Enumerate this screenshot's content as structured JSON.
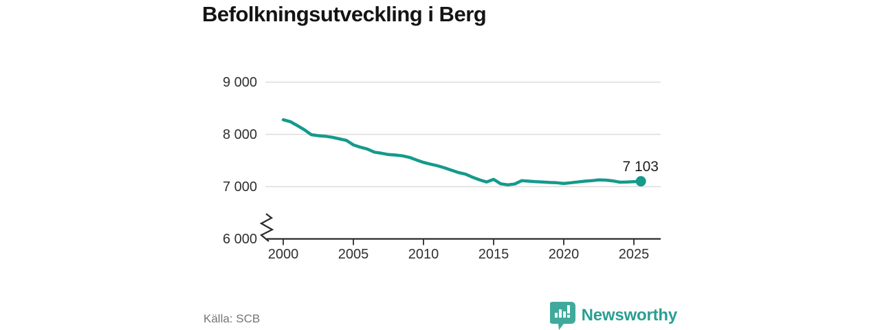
{
  "title": "Befolkningsutveckling i Berg",
  "source": "Källa: SCB",
  "brand": {
    "name": "Newsworthy",
    "color": "#2a9e93",
    "icon": "bar-chart-speech-bubble-icon"
  },
  "colors": {
    "line": "#159a8c",
    "dot": "#159a8c",
    "grid": "#dcdcdc",
    "axis": "#2a2a2a",
    "title_text": "#141414",
    "tick_text": "#2f2f2f",
    "muted_text": "#757575",
    "brand_teal": "#2a9e93"
  },
  "chart_data": {
    "type": "line",
    "title": "Befolkningsutveckling i Berg",
    "xlabel": "",
    "ylabel": "",
    "xlim": [
      2000,
      2026.5
    ],
    "ylim": [
      6000,
      9000
    ],
    "grid": "horizontal",
    "legend": "none",
    "axis_break": true,
    "x": [
      2000,
      2000.5,
      2001,
      2001.5,
      2002,
      2002.5,
      2003,
      2003.5,
      2004,
      2004.5,
      2005,
      2005.5,
      2006,
      2006.5,
      2007,
      2007.5,
      2008,
      2008.5,
      2009,
      2009.5,
      2010,
      2010.5,
      2011,
      2011.5,
      2012,
      2012.5,
      2013,
      2013.5,
      2014,
      2014.5,
      2015,
      2015.5,
      2016,
      2016.5,
      2017,
      2017.5,
      2018,
      2018.5,
      2019,
      2019.5,
      2020,
      2020.5,
      2021,
      2021.5,
      2022,
      2022.5,
      2023,
      2023.5,
      2024,
      2024.5,
      2025,
      2025.5
    ],
    "series": [
      {
        "name": "population",
        "values": [
          8280,
          8245,
          8170,
          8090,
          7995,
          7975,
          7965,
          7945,
          7915,
          7885,
          7800,
          7755,
          7720,
          7660,
          7640,
          7615,
          7605,
          7590,
          7560,
          7510,
          7465,
          7430,
          7400,
          7360,
          7315,
          7270,
          7240,
          7180,
          7130,
          7090,
          7140,
          7055,
          7035,
          7050,
          7115,
          7105,
          7095,
          7090,
          7080,
          7075,
          7060,
          7075,
          7090,
          7105,
          7115,
          7130,
          7125,
          7110,
          7085,
          7090,
          7095,
          7103
        ]
      }
    ],
    "end_annotation": {
      "year": 2025.5,
      "value": 7103,
      "label": "7 103"
    },
    "xticks": [
      {
        "label": "2000",
        "value": 2000
      },
      {
        "label": "2005",
        "value": 2005
      },
      {
        "label": "2010",
        "value": 2010
      },
      {
        "label": "2015",
        "value": 2015
      },
      {
        "label": "2020",
        "value": 2020
      },
      {
        "label": "2025",
        "value": 2025
      }
    ],
    "yticks": [
      {
        "label": "9 000",
        "value": 9000
      },
      {
        "label": "8 000",
        "value": 8000
      },
      {
        "label": "7 000",
        "value": 7000
      },
      {
        "label": "6 000",
        "value": 6000
      }
    ]
  }
}
